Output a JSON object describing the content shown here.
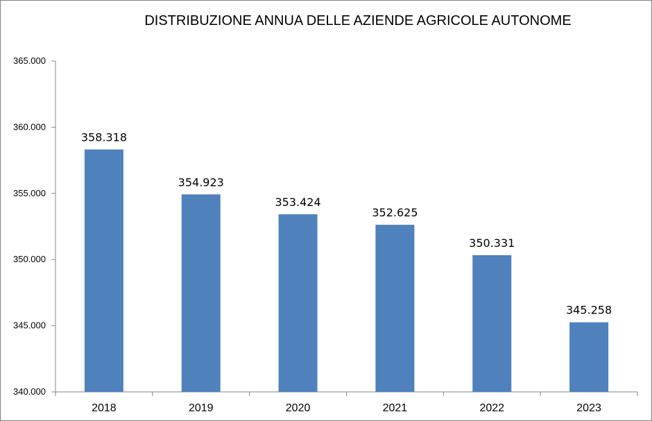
{
  "chart_data": {
    "type": "bar",
    "title": "DISTRIBUZIONE ANNUA DELLE AZIENDE AGRICOLE AUTONOME",
    "xlabel": "",
    "ylabel": "",
    "categories": [
      "2018",
      "2019",
      "2020",
      "2021",
      "2022",
      "2023"
    ],
    "values": [
      358318,
      354923,
      353424,
      352625,
      350331,
      345258
    ],
    "value_labels": [
      "358.318",
      "354.923",
      "353.424",
      "352.625",
      "350.331",
      "345.258"
    ],
    "ylim": [
      340000,
      365000
    ],
    "yticks": [
      340000,
      345000,
      350000,
      355000,
      360000,
      365000
    ],
    "ytick_labels": [
      "340.000",
      "345.000",
      "350.000",
      "355.000",
      "360.000",
      "365.000"
    ],
    "grid": false,
    "legend": "none",
    "bar_color": "#4f81bd",
    "axis_color": "#868686"
  }
}
